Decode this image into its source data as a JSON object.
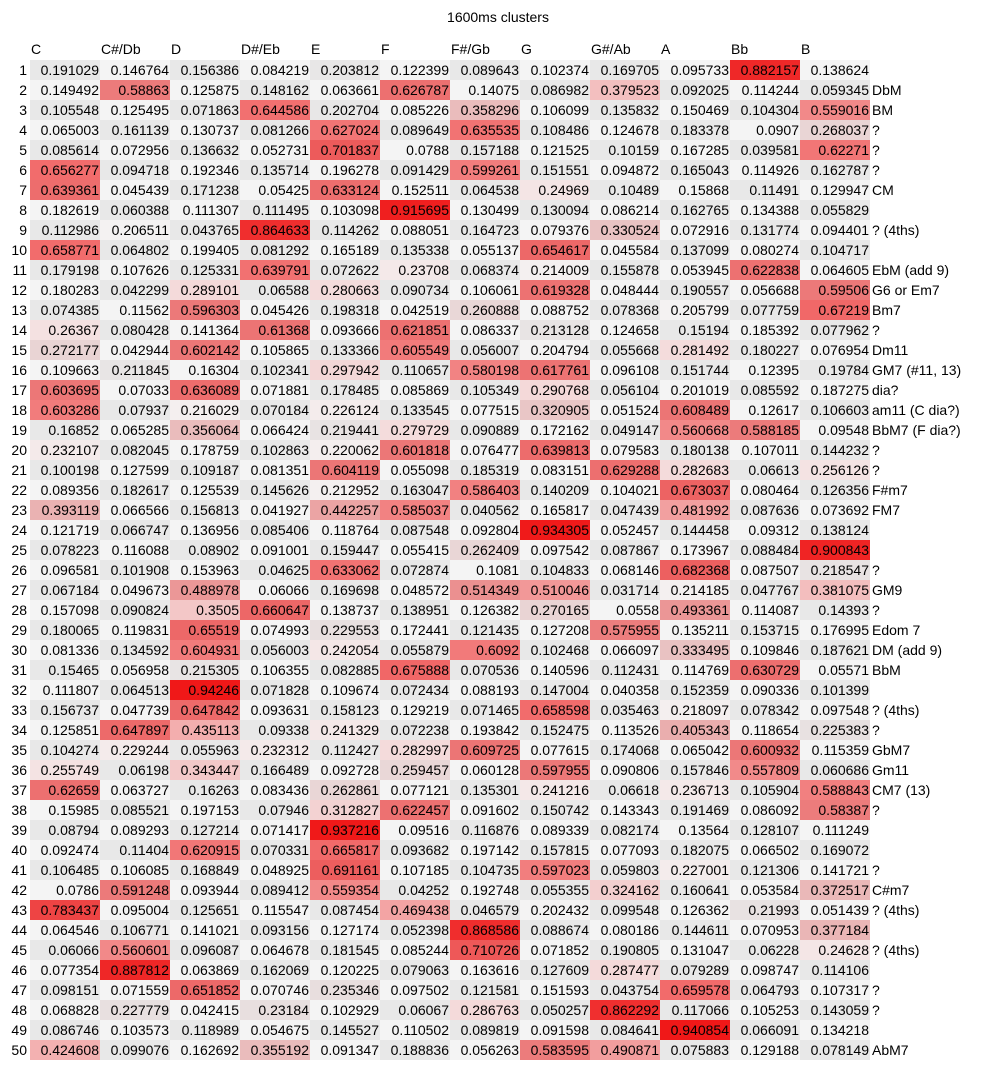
{
  "chart_data": {
    "type": "heatmap",
    "title": "1600ms clusters",
    "columns": [
      "C",
      "C#/Db",
      "D",
      "D#/Eb",
      "E",
      "F",
      "F#/Gb",
      "G",
      "G#/Ab",
      "A",
      "Bb",
      "B"
    ],
    "row_labels": [
      "1",
      "2",
      "3",
      "4",
      "5",
      "6",
      "7",
      "8",
      "9",
      "10",
      "11",
      "12",
      "13",
      "14",
      "15",
      "16",
      "17",
      "18",
      "19",
      "20",
      "21",
      "22",
      "23",
      "24",
      "25",
      "26",
      "27",
      "28",
      "29",
      "30",
      "31",
      "32",
      "33",
      "34",
      "35",
      "36",
      "37",
      "38",
      "39",
      "40",
      "41",
      "42",
      "43",
      "44",
      "45",
      "46",
      "47",
      "48",
      "49",
      "50"
    ],
    "values": [
      [
        "0.191029",
        "0.146764",
        "0.156386",
        "0.084219",
        "0.203812",
        "0.122399",
        "0.089643",
        "0.102374",
        "0.169705",
        "0.095733",
        "0.882157",
        "0.138624"
      ],
      [
        "0.149492",
        "0.58863",
        "0.125875",
        "0.148162",
        "0.063661",
        "0.626787",
        "0.14075",
        "0.086982",
        "0.379523",
        "0.092025",
        "0.114244",
        "0.059345"
      ],
      [
        "0.105548",
        "0.125495",
        "0.071863",
        "0.644586",
        "0.202704",
        "0.085226",
        "0.358296",
        "0.106099",
        "0.135832",
        "0.150469",
        "0.104304",
        "0.559016"
      ],
      [
        "0.065003",
        "0.161139",
        "0.130737",
        "0.081266",
        "0.627024",
        "0.089649",
        "0.635535",
        "0.108486",
        "0.124678",
        "0.183378",
        "0.0907",
        "0.268037"
      ],
      [
        "0.085614",
        "0.072956",
        "0.136632",
        "0.052731",
        "0.701837",
        "0.0788",
        "0.157188",
        "0.121525",
        "0.10159",
        "0.167285",
        "0.039581",
        "0.62271"
      ],
      [
        "0.656277",
        "0.094718",
        "0.192346",
        "0.135714",
        "0.196278",
        "0.091429",
        "0.599261",
        "0.151551",
        "0.094872",
        "0.165043",
        "0.114926",
        "0.162787"
      ],
      [
        "0.639361",
        "0.045439",
        "0.171238",
        "0.05425",
        "0.633124",
        "0.152511",
        "0.064538",
        "0.24969",
        "0.10489",
        "0.15868",
        "0.11491",
        "0.129947"
      ],
      [
        "0.182619",
        "0.060388",
        "0.111307",
        "0.111495",
        "0.103098",
        "0.915695",
        "0.130499",
        "0.130094",
        "0.086214",
        "0.162765",
        "0.134388",
        "0.055829"
      ],
      [
        "0.112986",
        "0.206511",
        "0.043765",
        "0.864633",
        "0.114262",
        "0.088051",
        "0.164723",
        "0.079376",
        "0.330524",
        "0.072916",
        "0.131774",
        "0.094401"
      ],
      [
        "0.658771",
        "0.064802",
        "0.199405",
        "0.081292",
        "0.165189",
        "0.135338",
        "0.055137",
        "0.654617",
        "0.045584",
        "0.137099",
        "0.080274",
        "0.104717"
      ],
      [
        "0.179198",
        "0.107626",
        "0.125331",
        "0.639791",
        "0.072622",
        "0.23708",
        "0.068374",
        "0.214009",
        "0.155878",
        "0.053945",
        "0.622838",
        "0.064605"
      ],
      [
        "0.180283",
        "0.042299",
        "0.289101",
        "0.06588",
        "0.280663",
        "0.090734",
        "0.106061",
        "0.619328",
        "0.048444",
        "0.190557",
        "0.056688",
        "0.59506"
      ],
      [
        "0.074385",
        "0.11562",
        "0.596303",
        "0.045426",
        "0.198318",
        "0.042519",
        "0.260888",
        "0.088752",
        "0.078368",
        "0.205799",
        "0.077759",
        "0.67219"
      ],
      [
        "0.26367",
        "0.080428",
        "0.141364",
        "0.61368",
        "0.093666",
        "0.621851",
        "0.086337",
        "0.213128",
        "0.124658",
        "0.15194",
        "0.185392",
        "0.077962"
      ],
      [
        "0.272177",
        "0.042944",
        "0.602142",
        "0.105865",
        "0.133366",
        "0.605549",
        "0.056007",
        "0.204794",
        "0.055668",
        "0.281492",
        "0.180227",
        "0.076954"
      ],
      [
        "0.109663",
        "0.211845",
        "0.16304",
        "0.102341",
        "0.297942",
        "0.110657",
        "0.580198",
        "0.617761",
        "0.096108",
        "0.151744",
        "0.12395",
        "0.19784"
      ],
      [
        "0.603695",
        "0.07033",
        "0.636089",
        "0.071881",
        "0.178485",
        "0.085869",
        "0.105349",
        "0.290768",
        "0.056104",
        "0.201019",
        "0.085592",
        "0.187275"
      ],
      [
        "0.603286",
        "0.07937",
        "0.216029",
        "0.070184",
        "0.226124",
        "0.133545",
        "0.077515",
        "0.320905",
        "0.051524",
        "0.608489",
        "0.12617",
        "0.106603"
      ],
      [
        "0.16852",
        "0.065285",
        "0.356064",
        "0.066424",
        "0.219441",
        "0.279729",
        "0.090889",
        "0.172162",
        "0.049147",
        "0.560668",
        "0.588185",
        "0.09548"
      ],
      [
        "0.232107",
        "0.082045",
        "0.178759",
        "0.102863",
        "0.220062",
        "0.601818",
        "0.076477",
        "0.639813",
        "0.079583",
        "0.180138",
        "0.107011",
        "0.144232"
      ],
      [
        "0.100198",
        "0.127599",
        "0.109187",
        "0.081351",
        "0.604119",
        "0.055098",
        "0.185319",
        "0.083151",
        "0.629288",
        "0.282683",
        "0.06613",
        "0.256126"
      ],
      [
        "0.089356",
        "0.182617",
        "0.125539",
        "0.145626",
        "0.212952",
        "0.163047",
        "0.586403",
        "0.140209",
        "0.104021",
        "0.673037",
        "0.080464",
        "0.126356"
      ],
      [
        "0.393119",
        "0.066566",
        "0.156813",
        "0.041927",
        "0.442257",
        "0.585037",
        "0.040562",
        "0.165817",
        "0.047439",
        "0.481992",
        "0.087636",
        "0.073692"
      ],
      [
        "0.121719",
        "0.066747",
        "0.136956",
        "0.085406",
        "0.118764",
        "0.087548",
        "0.092804",
        "0.934305",
        "0.052457",
        "0.144458",
        "0.09312",
        "0.138124"
      ],
      [
        "0.078223",
        "0.116088",
        "0.08902",
        "0.091001",
        "0.159447",
        "0.055415",
        "0.262409",
        "0.097542",
        "0.087867",
        "0.173967",
        "0.088484",
        "0.900843"
      ],
      [
        "0.096581",
        "0.101908",
        "0.153963",
        "0.04625",
        "0.633062",
        "0.072874",
        "0.1081",
        "0.104833",
        "0.068146",
        "0.682368",
        "0.087507",
        "0.218547"
      ],
      [
        "0.067184",
        "0.049673",
        "0.488978",
        "0.06066",
        "0.169698",
        "0.048572",
        "0.514349",
        "0.510046",
        "0.031714",
        "0.214185",
        "0.047767",
        "0.381075"
      ],
      [
        "0.157098",
        "0.090824",
        "0.3505",
        "0.660647",
        "0.138737",
        "0.138951",
        "0.126382",
        "0.270165",
        "0.0558",
        "0.493361",
        "0.114087",
        "0.14393"
      ],
      [
        "0.180065",
        "0.119831",
        "0.65519",
        "0.074993",
        "0.229553",
        "0.172441",
        "0.121435",
        "0.127208",
        "0.575955",
        "0.135211",
        "0.153715",
        "0.176995"
      ],
      [
        "0.081336",
        "0.134592",
        "0.604931",
        "0.056003",
        "0.242054",
        "0.055879",
        "0.6092",
        "0.102468",
        "0.066097",
        "0.333495",
        "0.109846",
        "0.187621"
      ],
      [
        "0.15465",
        "0.056958",
        "0.215305",
        "0.106355",
        "0.082885",
        "0.675888",
        "0.070536",
        "0.140596",
        "0.112431",
        "0.114769",
        "0.630729",
        "0.05571"
      ],
      [
        "0.111807",
        "0.064513",
        "0.94246",
        "0.071828",
        "0.109674",
        "0.072434",
        "0.088193",
        "0.147004",
        "0.040358",
        "0.152359",
        "0.090336",
        "0.101399"
      ],
      [
        "0.156737",
        "0.047739",
        "0.647842",
        "0.093631",
        "0.158123",
        "0.129219",
        "0.071465",
        "0.658598",
        "0.035463",
        "0.218097",
        "0.078342",
        "0.097548"
      ],
      [
        "0.125851",
        "0.647897",
        "0.435113",
        "0.09338",
        "0.241329",
        "0.072238",
        "0.193842",
        "0.152475",
        "0.113526",
        "0.405343",
        "0.118654",
        "0.225383"
      ],
      [
        "0.104274",
        "0.229244",
        "0.055963",
        "0.232312",
        "0.112427",
        "0.282997",
        "0.609725",
        "0.077615",
        "0.174068",
        "0.065042",
        "0.600932",
        "0.115359"
      ],
      [
        "0.255749",
        "0.06198",
        "0.343447",
        "0.166489",
        "0.092728",
        "0.259457",
        "0.060128",
        "0.597955",
        "0.090806",
        "0.157846",
        "0.557809",
        "0.060686"
      ],
      [
        "0.62659",
        "0.063727",
        "0.16263",
        "0.083436",
        "0.262861",
        "0.077121",
        "0.135301",
        "0.241216",
        "0.06618",
        "0.236713",
        "0.105904",
        "0.588843"
      ],
      [
        "0.15985",
        "0.085521",
        "0.197153",
        "0.07946",
        "0.312827",
        "0.622457",
        "0.091602",
        "0.150742",
        "0.143343",
        "0.191469",
        "0.086092",
        "0.58387"
      ],
      [
        "0.08794",
        "0.089293",
        "0.127214",
        "0.071417",
        "0.937216",
        "0.09516",
        "0.116876",
        "0.089339",
        "0.082174",
        "0.13564",
        "0.128107",
        "0.111249"
      ],
      [
        "0.092474",
        "0.11404",
        "0.620915",
        "0.070331",
        "0.665817",
        "0.093682",
        "0.197142",
        "0.157815",
        "0.077093",
        "0.182075",
        "0.066502",
        "0.169072"
      ],
      [
        "0.106485",
        "0.106085",
        "0.168849",
        "0.048925",
        "0.691161",
        "0.107185",
        "0.104735",
        "0.597023",
        "0.059803",
        "0.227001",
        "0.121306",
        "0.141721"
      ],
      [
        "0.0786",
        "0.591248",
        "0.093944",
        "0.089412",
        "0.559354",
        "0.04252",
        "0.192748",
        "0.055355",
        "0.324162",
        "0.160641",
        "0.053584",
        "0.372517"
      ],
      [
        "0.783437",
        "0.095004",
        "0.125651",
        "0.115547",
        "0.087454",
        "0.469438",
        "0.046579",
        "0.202432",
        "0.099548",
        "0.126362",
        "0.21993",
        "0.051439"
      ],
      [
        "0.064546",
        "0.106771",
        "0.141021",
        "0.093156",
        "0.127174",
        "0.052398",
        "0.868586",
        "0.088674",
        "0.080186",
        "0.144611",
        "0.070953",
        "0.377184"
      ],
      [
        "0.06066",
        "0.560601",
        "0.096087",
        "0.064678",
        "0.181545",
        "0.085244",
        "0.710726",
        "0.071852",
        "0.190805",
        "0.131047",
        "0.06228",
        "0.24628"
      ],
      [
        "0.077354",
        "0.887812",
        "0.063869",
        "0.162069",
        "0.120225",
        "0.079063",
        "0.163616",
        "0.127609",
        "0.287477",
        "0.079289",
        "0.098747",
        "0.114106"
      ],
      [
        "0.098151",
        "0.071559",
        "0.651852",
        "0.070746",
        "0.235346",
        "0.097502",
        "0.121581",
        "0.151593",
        "0.043754",
        "0.659578",
        "0.064793",
        "0.107317"
      ],
      [
        "0.068828",
        "0.227779",
        "0.042415",
        "0.23184",
        "0.102929",
        "0.06067",
        "0.286763",
        "0.050257",
        "0.862292",
        "0.117066",
        "0.105253",
        "0.143059"
      ],
      [
        "0.086746",
        "0.103573",
        "0.118989",
        "0.054675",
        "0.145527",
        "0.110502",
        "0.089819",
        "0.091598",
        "0.084641",
        "0.940854",
        "0.066091",
        "0.134218"
      ],
      [
        "0.424608",
        "0.099076",
        "0.162692",
        "0.355192",
        "0.091347",
        "0.188836",
        "0.056263",
        "0.583595",
        "0.490871",
        "0.075883",
        "0.129188",
        "0.078149"
      ]
    ],
    "annotations": [
      "",
      "DbM",
      "BM",
      "?",
      "?",
      "?",
      "CM",
      "",
      "? (4ths)",
      "",
      "EbM (add 9)",
      "G6 or Em7",
      "Bm7",
      "?",
      "Dm11",
      "GM7 (#11, 13)",
      "dia?",
      "am11 (C dia?)",
      "BbM7  (F dia?)",
      "?",
      "?",
      "F#m7",
      "FM7",
      "",
      "",
      "?",
      "GM9",
      "?",
      "Edom 7",
      "DM (add 9)",
      "BbM",
      "",
      "? (4ths)",
      "?",
      "GbM7",
      "Gm11",
      "CM7 (13)",
      "?",
      "",
      "",
      "?",
      "C#m7",
      "? (4ths)",
      "",
      "? (4ths)",
      "",
      "?",
      "?",
      "",
      "AbM7"
    ],
    "color_scale": {
      "low": "#ffffff",
      "mid": "#e0e0e0",
      "high": "#f01818",
      "stripe_even": "#e8e8e8",
      "stripe_odd": "#f4f4f4"
    }
  }
}
